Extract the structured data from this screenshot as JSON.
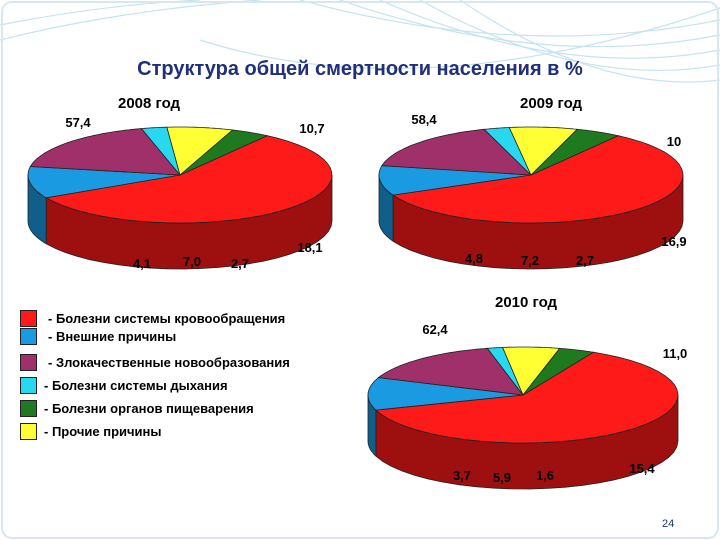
{
  "title": "Структура общей смертности населения в %",
  "page_number": "24",
  "colors": {
    "circulatory": "#ff1a1a",
    "external": "#1a9ae0",
    "neoplasms": "#a0306a",
    "respiratory": "#28d8f0",
    "digestive": "#1f7a1f",
    "other": "#ffff33"
  },
  "legend": [
    {
      "key": "circulatory",
      "label": "- Болезни системы кровообращения"
    },
    {
      "key": "external",
      "label": "- Внешние причины"
    },
    {
      "key": "neoplasms",
      "label": "- Злокачественные новообразования"
    },
    {
      "key": "respiratory",
      "label": "- Болезни системы дыхания"
    },
    {
      "key": "digestive",
      "label": "- Болезни органов пищеварения"
    },
    {
      "key": "other",
      "label": "- Прочие причины"
    }
  ],
  "chart_data": [
    {
      "type": "pie",
      "title": "2008 год",
      "series": [
        {
          "key": "circulatory",
          "value": 57.4,
          "label": "57,4"
        },
        {
          "key": "external",
          "value": 10.7,
          "label": "10,7"
        },
        {
          "key": "neoplasms",
          "value": 18.1,
          "label": "18,1"
        },
        {
          "key": "respiratory",
          "value": 2.7,
          "label": "2,7"
        },
        {
          "key": "other",
          "value": 7.0,
          "label": "7,0"
        },
        {
          "key": "digestive",
          "value": 4.1,
          "label": "4,1"
        }
      ]
    },
    {
      "type": "pie",
      "title": "2009 год",
      "series": [
        {
          "key": "circulatory",
          "value": 58.4,
          "label": "58,4"
        },
        {
          "key": "external",
          "value": 10,
          "label": "10"
        },
        {
          "key": "neoplasms",
          "value": 16.9,
          "label": "16,9"
        },
        {
          "key": "respiratory",
          "value": 2.7,
          "label": "2,7"
        },
        {
          "key": "other",
          "value": 7.2,
          "label": "7,2"
        },
        {
          "key": "digestive",
          "value": 4.8,
          "label": "4,8"
        }
      ]
    },
    {
      "type": "pie",
      "title": "2010 год",
      "series": [
        {
          "key": "circulatory",
          "value": 62.4,
          "label": "62,4"
        },
        {
          "key": "external",
          "value": 11.0,
          "label": "11,0"
        },
        {
          "key": "neoplasms",
          "value": 15.4,
          "label": "15,4"
        },
        {
          "key": "respiratory",
          "value": 1.6,
          "label": "1,6"
        },
        {
          "key": "other",
          "value": 5.9,
          "label": "5,9"
        },
        {
          "key": "digestive",
          "value": 3.7,
          "label": "3,7"
        }
      ]
    }
  ]
}
